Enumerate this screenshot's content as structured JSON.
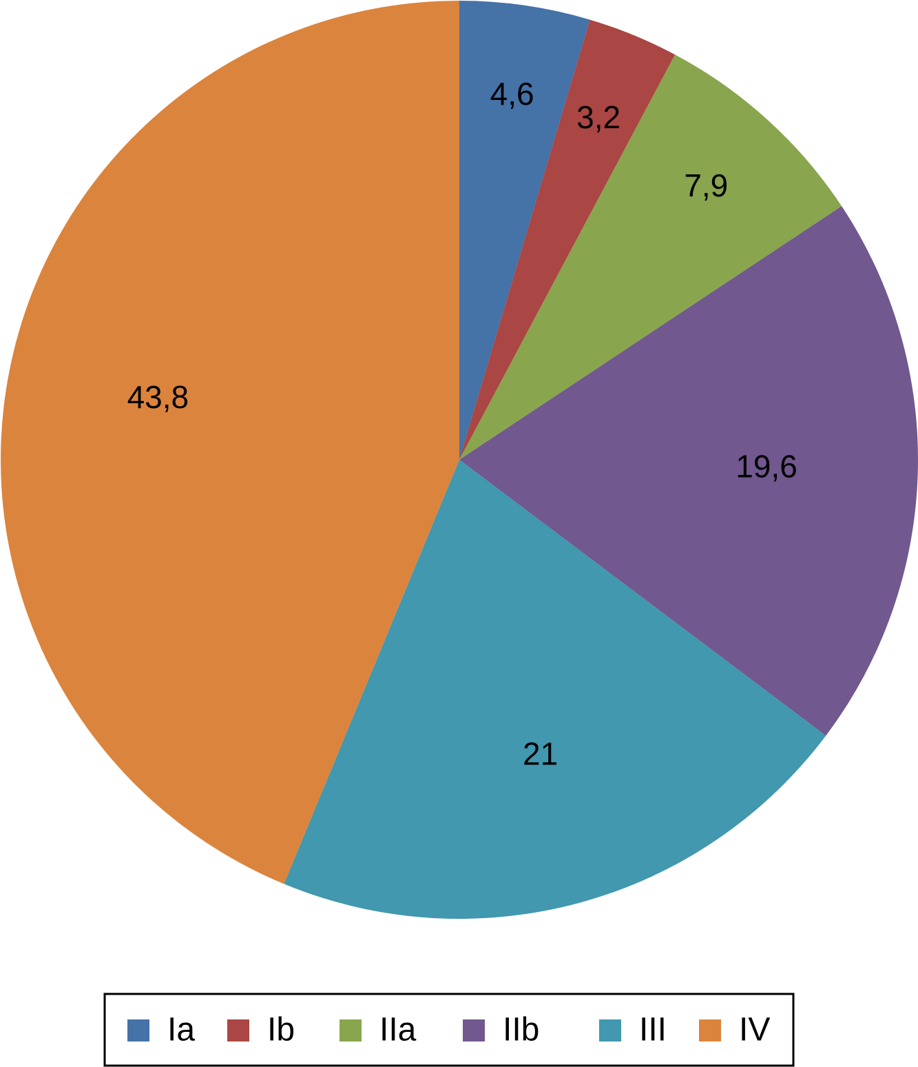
{
  "chart_data": {
    "type": "pie",
    "categories": [
      "Ia",
      "Ib",
      "IIa",
      "IIb",
      "III",
      "IV"
    ],
    "values": [
      4.6,
      3.2,
      7.9,
      19.6,
      21,
      43.8
    ],
    "value_labels": [
      "4,6",
      "3,2",
      "7,9",
      "19,6",
      "21",
      "43,8"
    ],
    "colors": [
      "#4572a7",
      "#aa4643",
      "#89a54e",
      "#71588f",
      "#4198af",
      "#db843d"
    ],
    "legend": "bottom"
  }
}
